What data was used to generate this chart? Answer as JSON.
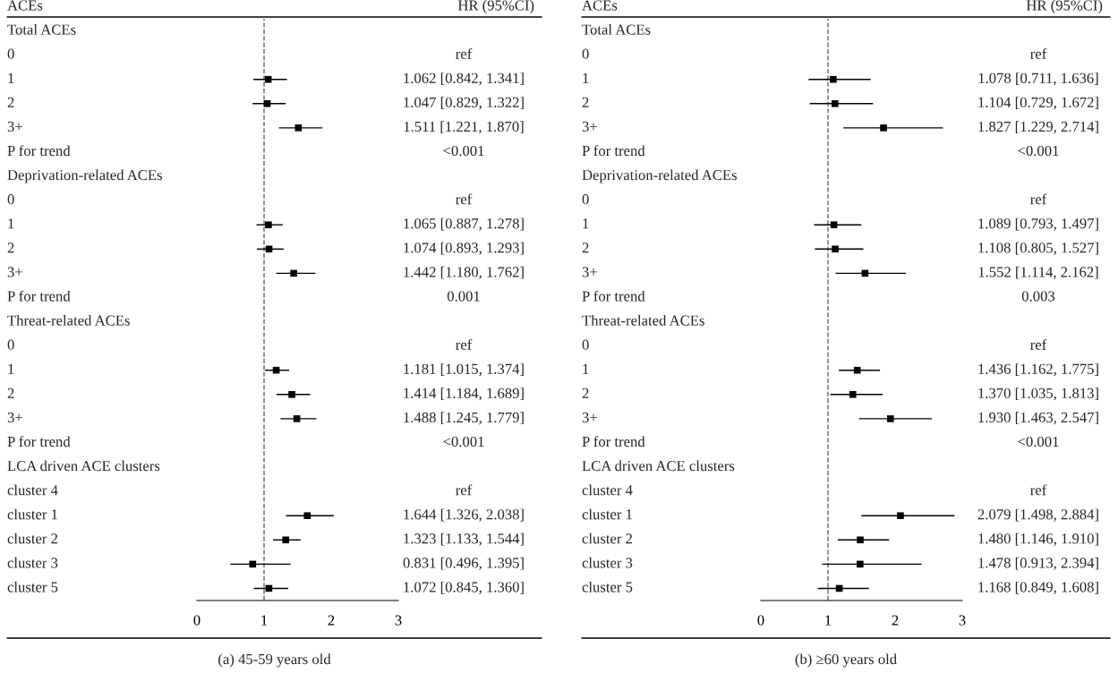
{
  "chart_data": [
    {
      "type": "scatter",
      "orientation": "horizontal",
      "title": "(a) 45-59 years old",
      "ylabel": "ACEs",
      "annotations": [
        "HR (95%CI)"
      ],
      "categories": [
        "Total ACEs",
        "0",
        "1",
        "2",
        "3+",
        "P for trend",
        "Deprivation-related ACEs",
        "0",
        "1",
        "2",
        "3+",
        "P for trend",
        "Threat-related ACEs",
        "0",
        "1",
        "2",
        "3+",
        "P for trend",
        "LCA driven ACE clusters",
        "cluster 4",
        "cluster 1",
        "cluster 2",
        "cluster 3",
        "cluster 5"
      ],
      "values": [
        null,
        null,
        1.062,
        1.047,
        1.511,
        null,
        null,
        null,
        1.065,
        1.074,
        1.442,
        null,
        null,
        null,
        1.181,
        1.414,
        1.488,
        null,
        null,
        null,
        1.644,
        1.323,
        0.831,
        1.072
      ],
      "errors": [
        null,
        null,
        [
          0.842,
          1.341
        ],
        [
          0.829,
          1.322
        ],
        [
          1.221,
          1.87
        ],
        null,
        null,
        null,
        [
          0.887,
          1.278
        ],
        [
          0.893,
          1.293
        ],
        [
          1.18,
          1.762
        ],
        null,
        null,
        null,
        [
          1.015,
          1.374
        ],
        [
          1.184,
          1.689
        ],
        [
          1.245,
          1.779
        ],
        null,
        null,
        null,
        [
          1.326,
          2.038
        ],
        [
          1.133,
          1.544
        ],
        [
          0.496,
          1.395
        ],
        [
          0.845,
          1.36
        ]
      ],
      "value_labels": [
        null,
        "ref",
        "1.062 [0.842, 1.341]",
        "1.047 [0.829, 1.322]",
        "1.511 [1.221, 1.870]",
        "<0.001",
        null,
        "ref",
        "1.065 [0.887, 1.278]",
        "1.074 [0.893, 1.293]",
        "1.442 [1.180, 1.762]",
        "0.001",
        null,
        "ref",
        "1.181 [1.015, 1.374]",
        "1.414 [1.184, 1.689]",
        "1.488 [1.245, 1.779]",
        "<0.001",
        null,
        "ref",
        "1.644 [1.326, 2.038]",
        "1.323 [1.133, 1.544]",
        "0.831 [0.496, 1.395]",
        "1.072 [0.845, 1.360]"
      ],
      "color": "#000000",
      "marker": "square",
      "xlim": [
        0,
        3
      ],
      "xticks": [
        0,
        1,
        2,
        3
      ],
      "ref_lines": [
        {
          "axis": "x",
          "value": 1,
          "color": "#666666",
          "line_style": "dashed"
        }
      ]
    },
    {
      "type": "scatter",
      "orientation": "horizontal",
      "title": "(b) ≥60 years old",
      "ylabel": "ACEs",
      "annotations": [
        "HR (95%CI)"
      ],
      "categories": [
        "Total ACEs",
        "0",
        "1",
        "2",
        "3+",
        "P for trend",
        "Deprivation-related ACEs",
        "0",
        "1",
        "2",
        "3+",
        "P for trend",
        "Threat-related ACEs",
        "0",
        "1",
        "2",
        "3+",
        "P for trend",
        "LCA driven ACE clusters",
        "cluster 4",
        "cluster 1",
        "cluster 2",
        "cluster 3",
        "cluster 5"
      ],
      "values": [
        null,
        null,
        1.078,
        1.104,
        1.827,
        null,
        null,
        null,
        1.089,
        1.108,
        1.552,
        null,
        null,
        null,
        1.436,
        1.37,
        1.93,
        null,
        null,
        null,
        2.079,
        1.48,
        1.478,
        1.168
      ],
      "errors": [
        null,
        null,
        [
          0.711,
          1.636
        ],
        [
          0.729,
          1.672
        ],
        [
          1.229,
          2.714
        ],
        null,
        null,
        null,
        [
          0.793,
          1.497
        ],
        [
          0.805,
          1.527
        ],
        [
          1.114,
          2.162
        ],
        null,
        null,
        null,
        [
          1.162,
          1.775
        ],
        [
          1.035,
          1.813
        ],
        [
          1.463,
          2.547
        ],
        null,
        null,
        null,
        [
          1.498,
          2.884
        ],
        [
          1.146,
          1.91
        ],
        [
          0.913,
          2.394
        ],
        [
          0.849,
          1.608
        ]
      ],
      "value_labels": [
        null,
        "ref",
        "1.078 [0.711, 1.636]",
        "1.104 [0.729, 1.672]",
        "1.827 [1.229, 2.714]",
        "<0.001",
        null,
        "ref",
        "1.089 [0.793, 1.497]",
        "1.108 [0.805, 1.527]",
        "1.552 [1.114, 2.162]",
        "0.003",
        null,
        "ref",
        "1.436 [1.162, 1.775]",
        "1.370 [1.035, 1.813]",
        "1.930 [1.463, 2.547]",
        "<0.001",
        null,
        "ref",
        "2.079 [1.498, 2.884]",
        "1.480 [1.146, 1.910]",
        "1.478 [0.913, 2.394]",
        "1.168 [0.849, 1.608]"
      ],
      "color": "#000000",
      "marker": "square",
      "xlim": [
        0,
        3
      ],
      "xticks": [
        0,
        1,
        2,
        3
      ],
      "ref_lines": [
        {
          "axis": "x",
          "value": 1,
          "color": "#666666",
          "line_style": "dashed"
        }
      ]
    }
  ]
}
